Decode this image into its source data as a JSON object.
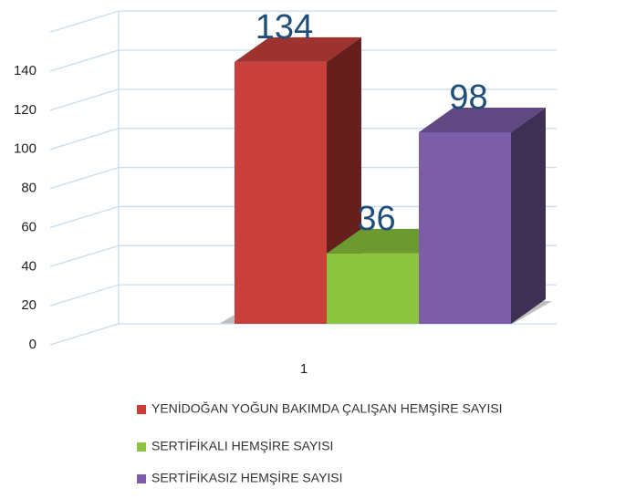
{
  "chart_data": {
    "type": "bar3d",
    "categories": [
      "1"
    ],
    "series": [
      {
        "name": "YENİDOĞAN YOĞUN BAKIMDA ÇALIŞAN HEMŞİRE SAYISI",
        "color": "#c9403b",
        "values": [
          134
        ]
      },
      {
        "name": "SERTİFİKALI HEMŞİRE SAYISI",
        "color": "#8cc43f",
        "values": [
          36
        ]
      },
      {
        "name": "SERTİFİKASIZ HEMŞİRE SAYISI",
        "color": "#7b5ea7",
        "values": [
          98
        ]
      }
    ],
    "ylim": [
      0,
      160
    ],
    "yticks": [
      0,
      20,
      40,
      60,
      80,
      100,
      120,
      140
    ],
    "grid": true,
    "legend": "bottom"
  }
}
